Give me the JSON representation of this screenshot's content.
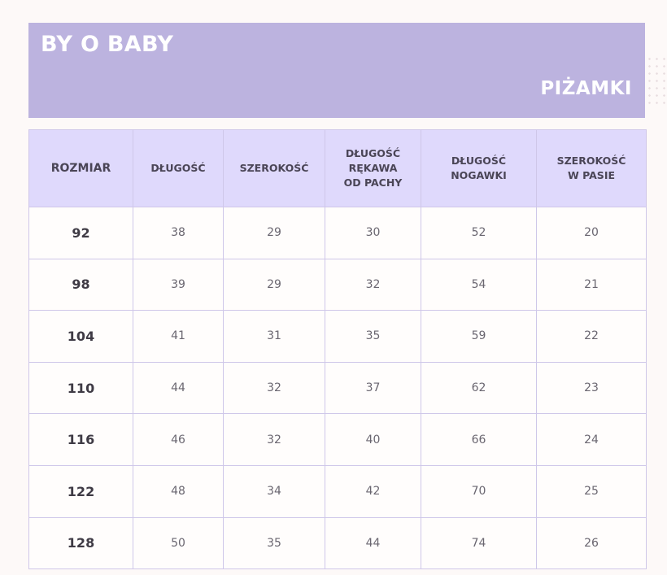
{
  "header": {
    "brand": "BY O BABY",
    "category": "PIŻAMKI"
  },
  "table": {
    "columns": [
      "ROZMIAR",
      "DŁUGOŚĆ",
      "SZEROKOŚĆ",
      "DŁUGOŚĆ\nRĘKAWA\nOD PACHY",
      "DŁUGOŚĆ\nNOGAWKI",
      "SZEROKOŚĆ\nW PASIE"
    ],
    "rows": [
      [
        "92",
        "38",
        "29",
        "30",
        "52",
        "20"
      ],
      [
        "98",
        "39",
        "29",
        "32",
        "54",
        "21"
      ],
      [
        "104",
        "41",
        "31",
        "35",
        "59",
        "22"
      ],
      [
        "110",
        "44",
        "32",
        "37",
        "62",
        "23"
      ],
      [
        "116",
        "46",
        "32",
        "40",
        "66",
        "24"
      ],
      [
        "122",
        "48",
        "34",
        "42",
        "70",
        "25"
      ],
      [
        "128",
        "50",
        "35",
        "44",
        "74",
        "26"
      ]
    ]
  }
}
